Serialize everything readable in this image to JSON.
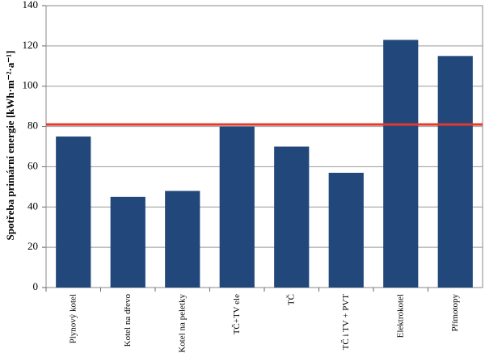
{
  "chart_data": {
    "type": "bar",
    "y_label": "Spotřeba  primární energie  [kWh·m⁻²·a⁻¹]",
    "categories": [
      "Plynový kotel",
      "Kotel na dřevo",
      "Kotel na peletky",
      "TČ+TV ele",
      "TČ",
      "TČ i TV + PVT",
      "Elektrokotel",
      "Přímotopy"
    ],
    "values": [
      75,
      45,
      48,
      80,
      70,
      57,
      123,
      115
    ],
    "color": "#22477a",
    "ylim": [
      0,
      140
    ],
    "yticks": [
      0,
      20,
      40,
      60,
      80,
      100,
      120,
      140
    ],
    "grid": true,
    "reference_line": {
      "value": 81,
      "color": "#e03a2c"
    }
  }
}
